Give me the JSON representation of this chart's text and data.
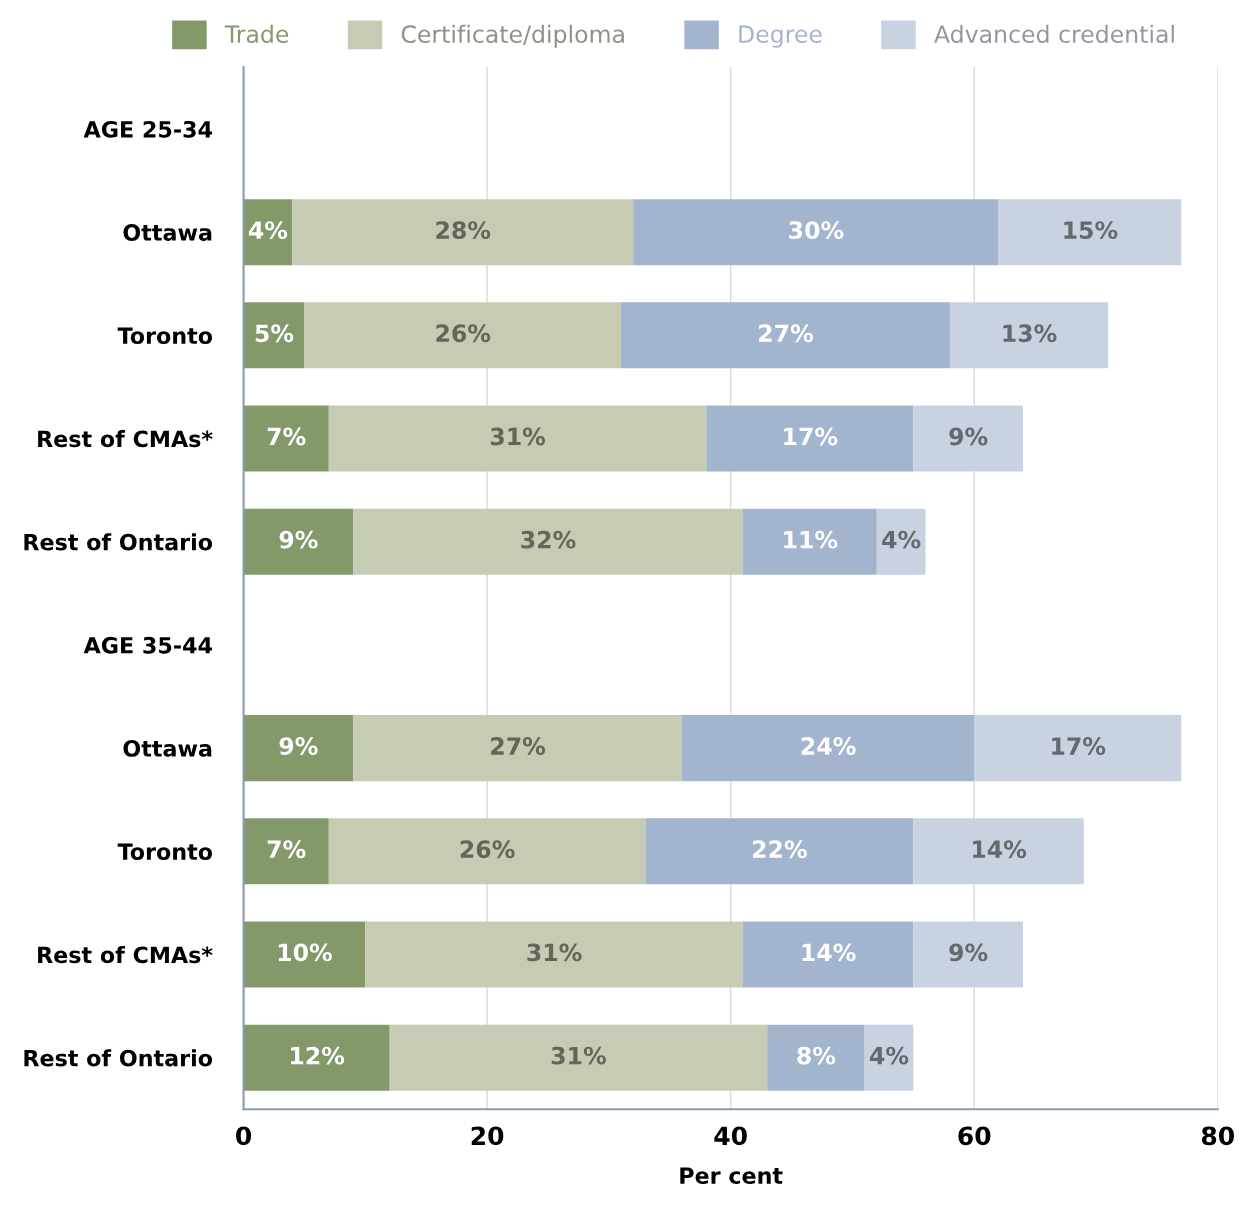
{
  "chart_data": {
    "type": "bar",
    "orientation": "horizontal",
    "stacked": true,
    "categories": [
      "AGE 25-34",
      "Ottawa",
      "Toronto",
      "Rest of CMAs*",
      "Rest of Ontario",
      "AGE 35-44",
      "Ottawa",
      "Toronto",
      "Rest of CMAs*",
      "Rest of Ontario"
    ],
    "series": [
      {
        "name": "Trade",
        "color": "#84996a",
        "values": [
          null,
          4,
          5,
          7,
          9,
          null,
          9,
          7,
          10,
          12
        ],
        "value_labels": [
          null,
          "4%",
          "5%",
          "7%",
          "9%",
          null,
          "9%",
          "7%",
          "10%",
          "12%"
        ]
      },
      {
        "name": "Certificate/diploma",
        "color": "#c6cbb4",
        "values": [
          null,
          28,
          26,
          31,
          32,
          null,
          27,
          26,
          31,
          31
        ],
        "value_labels": [
          null,
          "28%",
          "26%",
          "31%",
          "32%",
          null,
          "27%",
          "26%",
          "31%",
          "31%"
        ]
      },
      {
        "name": "Degree",
        "color": "#a3b4cf",
        "values": [
          null,
          30,
          27,
          17,
          11,
          null,
          24,
          22,
          14,
          8
        ],
        "value_labels": [
          null,
          "30%",
          "27%",
          "17%",
          "11%",
          null,
          "24%",
          "22%",
          "14%",
          "8%"
        ]
      },
      {
        "name": "Advanced credential",
        "color": "#c9d2e1",
        "values": [
          null,
          15,
          13,
          9,
          4,
          null,
          17,
          14,
          9,
          4
        ],
        "value_labels": [
          null,
          "15%",
          "13%",
          "9%",
          "4%",
          null,
          "17%",
          "14%",
          "9%",
          "4%"
        ]
      }
    ],
    "xlim": [
      0,
      80
    ],
    "xticks": [
      0,
      20,
      40,
      60,
      80
    ],
    "xlabel": "Per cent",
    "grid": "x",
    "legend": "top"
  }
}
